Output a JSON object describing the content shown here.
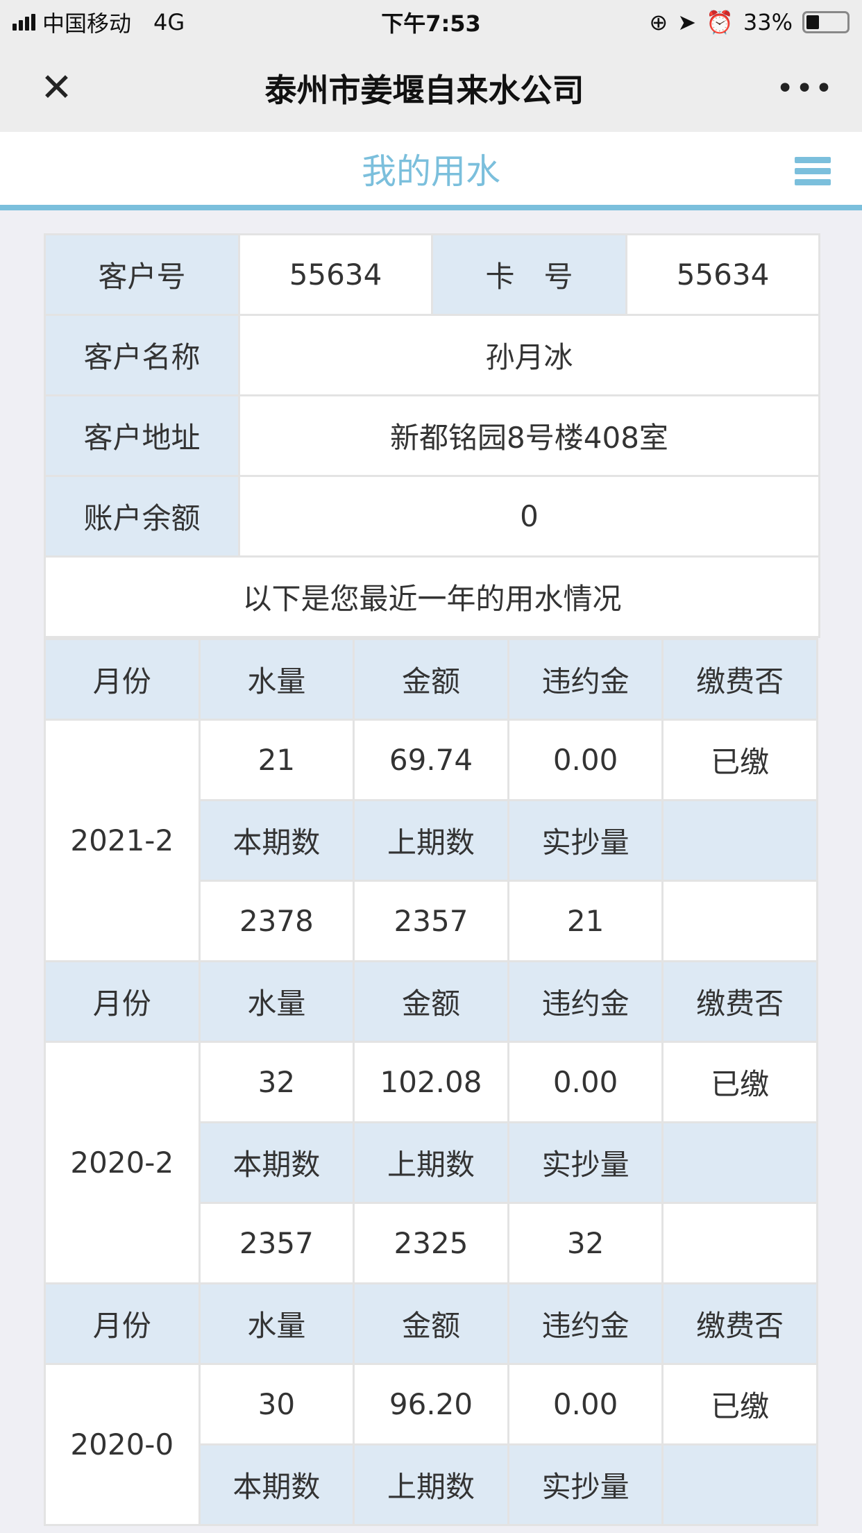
{
  "status_bar": {
    "carrier": "中国移动",
    "network": "4G",
    "time": "下午7:53",
    "battery": "33%",
    "battery_level": 0.33
  },
  "nav": {
    "title": "泰州市姜堰自来水公司",
    "close_icon": "close-icon",
    "more_icon": "more-icon"
  },
  "header": {
    "title": "我的用水",
    "menu_icon": "hamburger-menu-icon"
  },
  "colors": {
    "accent": "#7bbfdc",
    "label_bg": "#dde9f4"
  },
  "info": {
    "customer_no_label": "客户号",
    "customer_no": "55634",
    "card_no_label": "卡　号",
    "card_no": "55634",
    "name_label": "客户名称",
    "name": "孙月冰",
    "address_label": "客户地址",
    "address": "新都铭园8号楼408室",
    "balance_label": "账户余额",
    "balance": "0"
  },
  "usage_title": "以下是您最近一年的用水情况",
  "columns": [
    "月份",
    "水量",
    "金额",
    "违约金",
    "缴费否"
  ],
  "sub_columns": [
    "本期数",
    "上期数",
    "实抄量"
  ],
  "records": [
    {
      "month": "2021-2",
      "volume": "21",
      "amount": "69.74",
      "penalty": "0.00",
      "paid": "已缴",
      "current": "2378",
      "previous": "2357",
      "actual": "21"
    },
    {
      "month": "2020-2",
      "volume": "32",
      "amount": "102.08",
      "penalty": "0.00",
      "paid": "已缴",
      "current": "2357",
      "previous": "2325",
      "actual": "32"
    },
    {
      "month": "2020-0",
      "volume": "30",
      "amount": "96.20",
      "penalty": "0.00",
      "paid": "已缴"
    }
  ]
}
